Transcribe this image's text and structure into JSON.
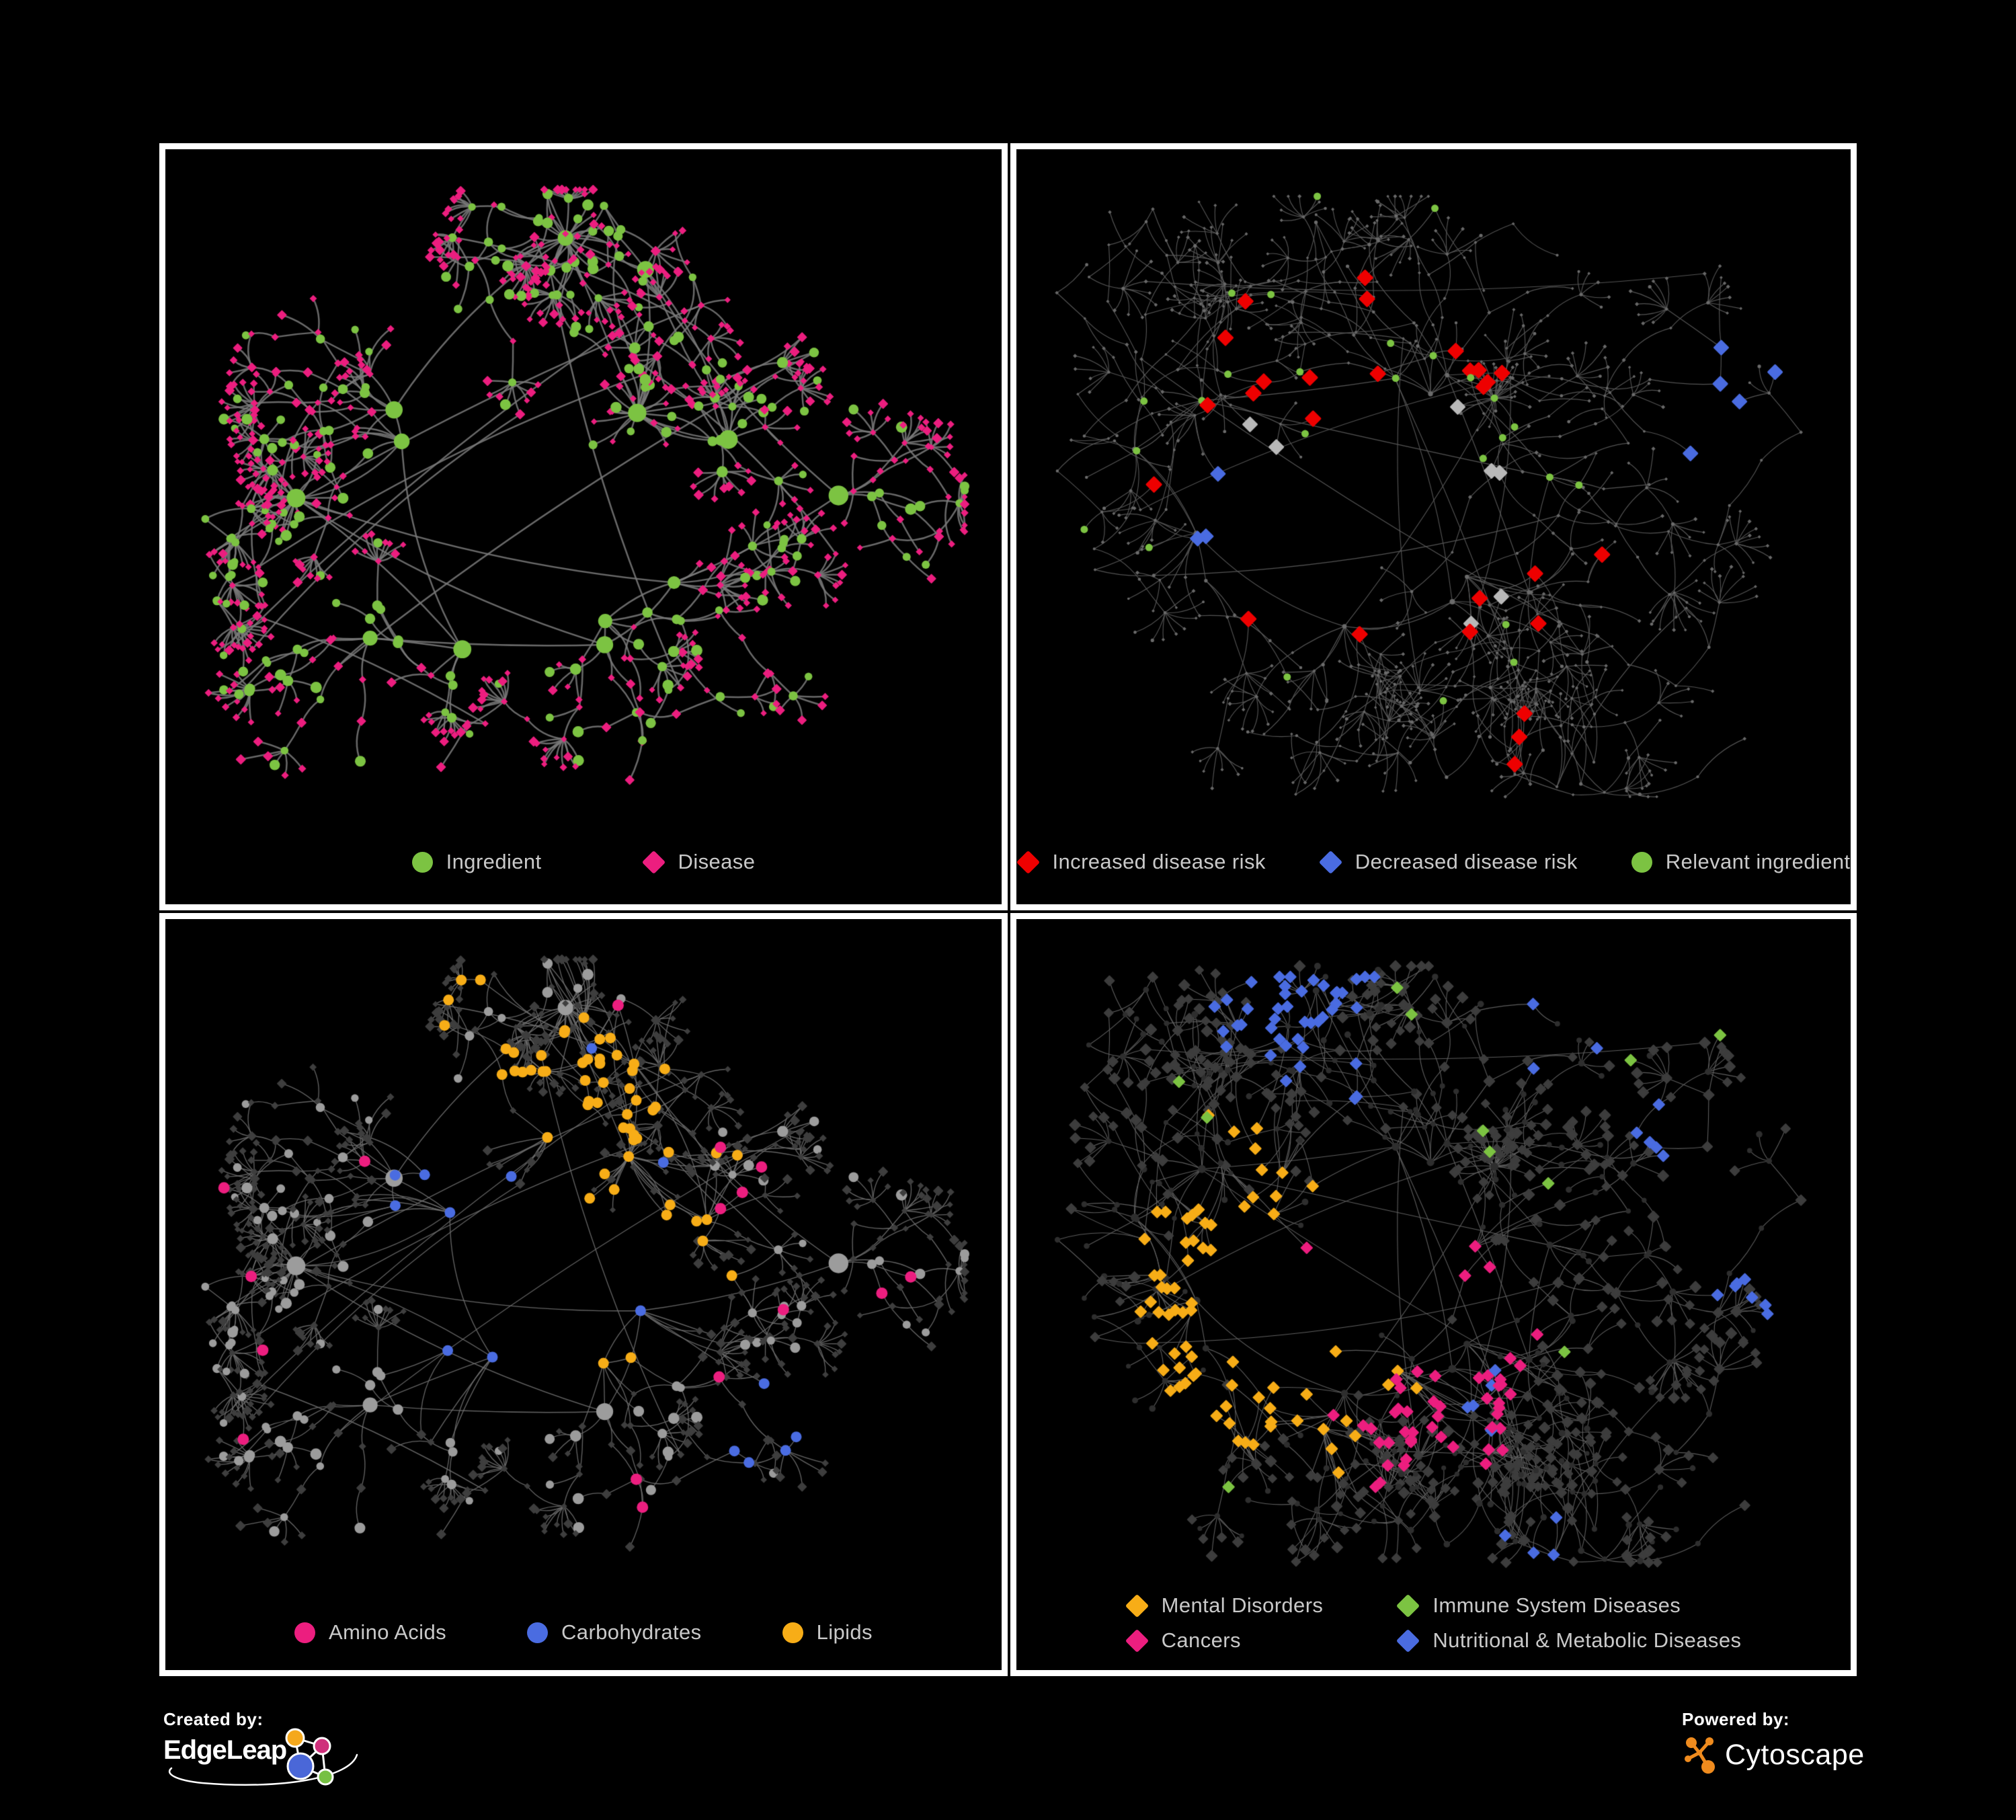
{
  "page": {
    "background": "#000000",
    "panel_border_color": "#ffffff",
    "legend_text_color": "#c9c9c9"
  },
  "colors": {
    "green": "#7cc342",
    "magenta": "#ec1e7f",
    "red": "#ee0000",
    "blue": "#4a6ce1",
    "amber": "#f7ad17",
    "silver": "#b9b9b9"
  },
  "footer": {
    "created_by_label": "Created by:",
    "created_by_brand": "EdgeLeap",
    "powered_by_label": "Powered by:",
    "powered_by_brand": "Cytoscape",
    "edgeleap_logo": {
      "orange": "#f5a81c",
      "pink": "#cf2f7b",
      "blue": "#4a67d8",
      "green": "#76c043",
      "line": "#ffffff"
    },
    "cytoscape_logo": {
      "orange": "#ef8b1e"
    }
  },
  "panels": [
    {
      "name": "ingredient-disease",
      "legend_rows": [
        [
          {
            "shape": "circle",
            "color": "#7cc342",
            "label": "Ingredient"
          },
          {
            "shape": "diamond",
            "color": "#ec1e7f",
            "label": "Disease"
          }
        ]
      ],
      "network": {
        "pair_seed": 1137,
        "style_seed": 11,
        "gen": {
          "hubs": 13,
          "cores": 3,
          "coreMin": 16,
          "coreMax": 26,
          "coreR": 70,
          "brMin": 3,
          "brMax": 5,
          "chainMax": 4,
          "stepMin": 42,
          "stepMax": 72,
          "forkP": 0.34,
          "burstP": 0.52,
          "burstMin": 4,
          "burstMax": 10,
          "leafR": 34,
          "longEdges": 14,
          "marginX": 55,
          "marginTop": 60,
          "marginBottom": 150
        },
        "edge": {
          "color": "#7b7b7b",
          "width": 2.5,
          "alpha": 0.85,
          "curve": 0.45
        },
        "base": {
          "circle": "#7cc342",
          "diamond": "#ec1e7f",
          "hub": [
            9,
            15
          ],
          "circ": [
            5.5,
            8.5
          ],
          "diam": [
            4.5,
            6.5
          ]
        },
        "highlights": []
      }
    },
    {
      "name": "disease-risk",
      "legend_rows": [
        [
          {
            "shape": "diamond",
            "color": "#ee0000",
            "label": "Increased disease risk"
          },
          {
            "shape": "diamond",
            "color": "#4a6ce1",
            "label": "Decreased disease risk"
          },
          {
            "shape": "circle",
            "color": "#7cc342",
            "label": "Relevant ingredient"
          }
        ]
      ],
      "network": {
        "pair_seed": 4242,
        "style_seed": 21,
        "gen": {
          "hubs": 12,
          "cores": 2,
          "coreMin": 10,
          "coreMax": 16,
          "coreR": 60,
          "brMin": 4,
          "brMax": 6,
          "chainMax": 5,
          "stepMin": 52,
          "stepMax": 92,
          "forkP": 0.32,
          "burstP": 0.55,
          "burstMin": 4,
          "burstMax": 8,
          "leafR": 40,
          "longEdges": 12,
          "marginX": 60,
          "marginTop": 70,
          "marginBottom": 160
        },
        "edge": {
          "color": "#585858",
          "width": 1.15,
          "alpha": 0.95,
          "curve": 0.4
        },
        "base": {
          "circle": "#6b6b6b",
          "diamond": "#686868",
          "hub": [
            3,
            4.2
          ],
          "circ": [
            1.8,
            2.7
          ],
          "diam": [
            2.2,
            3.1
          ]
        },
        "highlights": [
          {
            "only": "d",
            "color": "#ee0000",
            "size": 10.5,
            "cap": 27,
            "pIn": 0.8,
            "pOut": 0.2,
            "pull": 0.15,
            "centers": [
              [
                0.38,
                0.4,
                0.15
              ],
              [
                0.47,
                0.47,
                0.11
              ],
              [
                0.57,
                0.52,
                0.09
              ],
              [
                0.3,
                0.33,
                0.06
              ],
              [
                0.62,
                0.79,
                0.05
              ],
              [
                0.55,
                0.3,
                0.05
              ]
            ]
          },
          {
            "only": "d",
            "color": "#4a6ce1",
            "size": 10,
            "cap": 8,
            "pIn": 0.85,
            "pOut": 0.15,
            "pull": 0.3,
            "centers": [
              [
                0.88,
                0.33,
                0.05
              ],
              [
                0.315,
                0.5,
                0.05
              ],
              [
                0.36,
                0.44,
                0.03
              ]
            ]
          },
          {
            "only": "d",
            "color": "#b9b9b9",
            "size": 10,
            "cap": 7,
            "pIn": 0.5,
            "pOut": 0.1,
            "pull": 0.1,
            "centers": [
              [
                0.45,
                0.55,
                0.06
              ],
              [
                0.52,
                0.42,
                0.05
              ],
              [
                0.29,
                0.4,
                0.045
              ],
              [
                0.56,
                0.57,
                0.04
              ]
            ]
          },
          {
            "only": "c",
            "color": "#7cc342",
            "size": 5.5,
            "cap": 26,
            "pIn": 0.55,
            "pOut": 0.15,
            "pull": 0,
            "centers": [
              [
                0.42,
                0.4,
                0.2
              ],
              [
                0.3,
                0.36,
                0.1
              ],
              [
                0.55,
                0.52,
                0.12
              ]
            ]
          }
        ]
      }
    },
    {
      "name": "macronutrients",
      "legend_rows": [
        [
          {
            "shape": "circle",
            "color": "#ec1e7f",
            "label": "Amino Acids"
          },
          {
            "shape": "circle",
            "color": "#4a6ce1",
            "label": "Carbohydrates"
          },
          {
            "shape": "circle",
            "color": "#f7ad17",
            "label": "Lipids"
          }
        ]
      ],
      "network": {
        "pair_seed": 1137,
        "style_seed": 31,
        "gen": {
          "hubs": 13,
          "cores": 3,
          "coreMin": 16,
          "coreMax": 26,
          "coreR": 70,
          "brMin": 3,
          "brMax": 5,
          "chainMax": 4,
          "stepMin": 42,
          "stepMax": 72,
          "forkP": 0.34,
          "burstP": 0.52,
          "burstMin": 4,
          "burstMax": 10,
          "leafR": 34,
          "longEdges": 14,
          "marginX": 55,
          "marginTop": 60,
          "marginBottom": 150
        },
        "edge": {
          "color": "#6e6e6e",
          "width": 1.35,
          "alpha": 0.9,
          "curve": 0.45
        },
        "base": {
          "circle": "#9c9c9c",
          "diamond": "#3e3e3e",
          "hub": [
            9,
            15
          ],
          "circ": [
            5.5,
            8.5
          ],
          "diam": [
            4.5,
            6.5
          ]
        },
        "highlights": [
          {
            "only": "c",
            "color": "#f7ad17",
            "size": 8,
            "cap": 58,
            "pIn": 0.85,
            "pOut": 0.25,
            "pull": 0.35,
            "centers": [
              [
                0.535,
                0.255,
                0.075
              ],
              [
                0.5,
                0.335,
                0.05
              ],
              [
                0.43,
                0.22,
                0.045
              ],
              [
                0.6,
                0.43,
                0.05
              ],
              [
                0.52,
                0.53,
                0.04
              ],
              [
                0.33,
                0.09,
                0.04
              ]
            ]
          },
          {
            "only": "c",
            "color": "#4a6ce1",
            "size": 8,
            "cap": 24,
            "pIn": 0.7,
            "pOut": 0.15,
            "pull": 0.3,
            "centers": [
              [
                0.475,
                0.4,
                0.05
              ],
              [
                0.43,
                0.35,
                0.035
              ],
              [
                0.07,
                0.16,
                0.02
              ],
              [
                0.72,
                0.67,
                0.025
              ]
            ]
          },
          {
            "only": "c",
            "color": "#ec1e7f",
            "size": 8.5,
            "cap": 16,
            "pIn": 0.1,
            "pOut": 0.05,
            "pFar": 0.02,
            "pull": 0,
            "centers": [
              [
                0.45,
                0.62,
                0.3
              ],
              [
                0.62,
                0.26,
                0.22
              ]
            ]
          }
        ]
      }
    },
    {
      "name": "disease-categories",
      "legend_rows": [
        [
          {
            "shape": "diamond",
            "color": "#f7ad17",
            "label": "Mental Disorders"
          },
          {
            "shape": "diamond",
            "color": "#7cc342",
            "label": "Immune System Diseases"
          }
        ],
        [
          {
            "shape": "diamond",
            "color": "#ec1e7f",
            "label": "Cancers"
          },
          {
            "shape": "diamond",
            "color": "#4a6ce1",
            "label": "Nutritional & Metabolic Diseases"
          }
        ]
      ],
      "network": {
        "pair_seed": 4242,
        "style_seed": 41,
        "gen": {
          "hubs": 12,
          "cores": 2,
          "coreMin": 10,
          "coreMax": 16,
          "coreR": 60,
          "brMin": 4,
          "brMax": 6,
          "chainMax": 5,
          "stepMin": 52,
          "stepMax": 92,
          "forkP": 0.32,
          "burstP": 0.55,
          "burstMin": 4,
          "burstMax": 8,
          "leafR": 40,
          "longEdges": 12,
          "marginX": 60,
          "marginTop": 70,
          "marginBottom": 160
        },
        "edge": {
          "color": "#626262",
          "width": 1.1,
          "alpha": 0.95,
          "curve": 0.4
        },
        "base": {
          "circle": "#2e2e2e",
          "diamond": "#3d3d3d",
          "hub": [
            5,
            6.2
          ],
          "circ": [
            3.5,
            5
          ],
          "diam": [
            6,
            7.8
          ]
        },
        "highlights": [
          {
            "only": "d",
            "color": "#f7ad17",
            "size": 8,
            "cap": 72,
            "pIn": 0.9,
            "pOut": 0.3,
            "pull": 0.3,
            "centers": [
              [
                0.255,
                0.525,
                0.08
              ],
              [
                0.29,
                0.46,
                0.05
              ],
              [
                0.205,
                0.575,
                0.05
              ],
              [
                0.33,
                0.55,
                0.04
              ]
            ]
          },
          {
            "only": "d",
            "color": "#ec1e7f",
            "size": 8,
            "cap": 50,
            "pIn": 0.8,
            "pOut": 0.25,
            "pull": 0.25,
            "centers": [
              [
                0.45,
                0.57,
                0.085
              ],
              [
                0.52,
                0.52,
                0.05
              ],
              [
                0.875,
                0.42,
                0.035
              ],
              [
                0.41,
                0.64,
                0.04
              ],
              [
                0.56,
                0.62,
                0.035
              ]
            ]
          },
          {
            "only": "d",
            "color": "#4a6ce1",
            "size": 8,
            "cap": 66,
            "pIn": 0.8,
            "pOut": 0.25,
            "pull": 0.25,
            "centers": [
              [
                0.545,
                0.62,
                0.05
              ],
              [
                0.335,
                0.12,
                0.08
              ],
              [
                0.69,
                0.16,
                0.065
              ],
              [
                0.89,
                0.48,
                0.065
              ],
              [
                0.63,
                0.85,
                0.04
              ],
              [
                0.79,
                0.3,
                0.05
              ],
              [
                0.41,
                0.22,
                0.05
              ]
            ]
          },
          {
            "only": "d",
            "color": "#7cc342",
            "size": 8,
            "cap": 11,
            "pIn": 0.05,
            "pOut": 0.03,
            "pFar": 0.015,
            "pull": 0,
            "centers": [
              [
                0.48,
                0.35,
                0.3
              ]
            ]
          }
        ]
      }
    }
  ]
}
